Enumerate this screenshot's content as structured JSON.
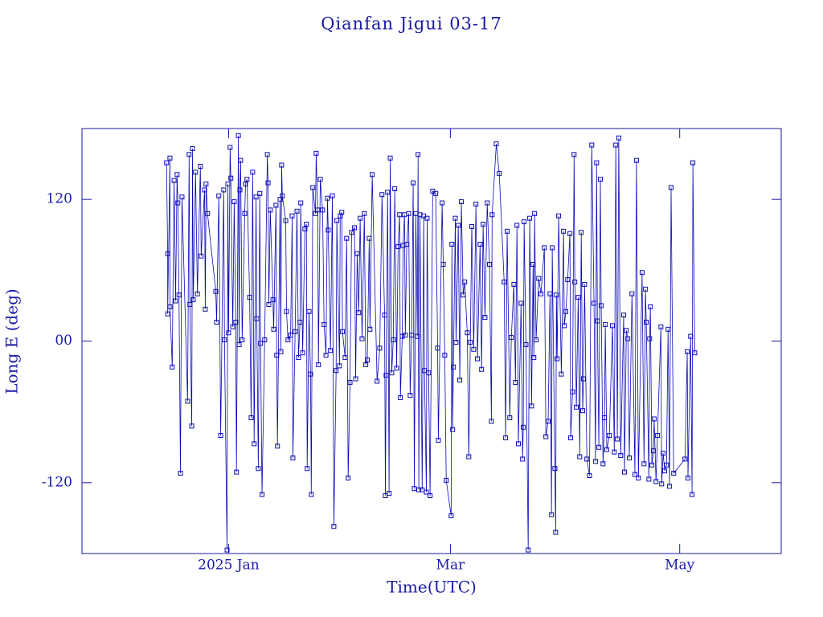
{
  "chart_data": {
    "type": "line",
    "title": "Qianfan Jigui 03-17",
    "x_label": "Time(UTC)",
    "y_label": "Long E (deg)",
    "color": "#0a0ab4",
    "marker": "square",
    "xlim": [
      -39,
      147
    ],
    "ylim": [
      -180,
      180
    ],
    "xticks": [
      {
        "value": 0,
        "label": "2025 Jan"
      },
      {
        "value": 59,
        "label": "Mar"
      },
      {
        "value": 120,
        "label": "May"
      }
    ],
    "yticks": [
      -120,
      {
        "value": 0,
        "label": "00"
      },
      120
    ],
    "x": [
      -16.5,
      -16.2,
      -16.2,
      -15.6,
      -15.6,
      -15,
      -14.5,
      -14.1,
      -13.7,
      -13.5,
      -13.2,
      -12.8,
      -12.4,
      -10.9,
      -10.5,
      -10.3,
      -9.8,
      -9.6,
      -9.4,
      -8.8,
      -8.3,
      -7.5,
      -7.3,
      -6.4,
      -6.2,
      -6,
      -5.6,
      -3.4,
      -3.2,
      -2.6,
      -2.1,
      -1.3,
      -1.1,
      -0.4,
      -0.2,
      0,
      0.4,
      0.6,
      1.1,
      1.5,
      1.9,
      2.1,
      2.6,
      2.8,
      3,
      3.2,
      3.6,
      4.3,
      4.5,
      4.9,
      5.6,
      6,
      6.4,
      6.8,
      7.3,
      7.5,
      7.9,
      8.3,
      8.5,
      8.9,
      9.6,
      10.3,
      10.5,
      10.7,
      11.1,
      11.8,
      12,
      12.6,
      12.8,
      13,
      13.7,
      13.9,
      14.1,
      14.3,
      15.2,
      15.4,
      15.8,
      16.5,
      16.9,
      17.1,
      17.7,
      18.2,
      18.6,
      19,
      19.2,
      19.7,
      20.3,
      20.7,
      20.9,
      21.4,
      21.8,
      22,
      22.4,
      23.1,
      23.3,
      23.7,
      23.9,
      24.4,
      25,
      25.4,
      25.9,
      26.3,
      26.5,
      27.1,
      27.6,
      28,
      28.6,
      28.8,
      29.5,
      29.7,
      30.1,
      30.3,
      31,
      31.4,
      31.8,
      32.3,
      32.7,
      33.5,
      33.8,
      34.2,
      34.6,
      35,
      35.5,
      36.1,
      36.5,
      36.9,
      37.4,
      37.6,
      38.2,
      39.5,
      40.2,
      40.8,
      41.5,
      41.7,
      41.9,
      42.3,
      42.7,
      43,
      43.4,
      43.8,
      44.2,
      44.7,
      45.1,
      45.5,
      45.7,
      46.2,
      46.4,
      46.8,
      47,
      47.4,
      47.9,
      48.3,
      48.7,
      49.1,
      49.4,
      49.8,
      50.2,
      50.4,
      50.6,
      50.9,
      51.5,
      51.9,
      52.1,
      52.6,
      52.8,
      53.2,
      53.6,
      54.3,
      55.1,
      55.6,
      55.8,
      56.8,
      57.1,
      57.5,
      57.9,
      59.2,
      59.4,
      59.6,
      59.8,
      60.3,
      60.5,
      61.1,
      61.5,
      61.9,
      62.4,
      62.8,
      63.5,
      63.9,
      64.3,
      64.7,
      65.2,
      65.8,
      66.2,
      66.9,
      67.3,
      67.7,
      68.2,
      68.8,
      69.4,
      69.9,
      70.1,
      71.2,
      72,
      73.3,
      73.7,
      74.1,
      74.8,
      75.2,
      75.9,
      76.3,
      76.7,
      77.1,
      77.8,
      78.2,
      78.4,
      78.6,
      79.1,
      79.7,
      80.1,
      80.6,
      81,
      81.2,
      81.4,
      81.8,
      82.5,
      83.1,
      84,
      84.4,
      85,
      85.5,
      85.9,
      86.1,
      86.8,
      87,
      87.2,
      87.4,
      87.8,
      88.5,
      89.1,
      89.3,
      89.7,
      90.2,
      90.8,
      91,
      91.5,
      91.9,
      92.1,
      92.5,
      93,
      93.4,
      93.8,
      94.2,
      94.4,
      94.7,
      95.3,
      96,
      96.6,
      97.2,
      97.6,
      97.9,
      98.1,
      98.5,
      98.9,
      99.1,
      99.6,
      100,
      100.2,
      100.6,
      101.3,
      102.1,
      102.6,
      103,
      103.4,
      103.8,
      104.3,
      105.1,
      105.3,
      105.8,
      106.2,
      106.6,
      107.3,
      108.1,
      108.5,
      109,
      110,
      110.5,
      110.9,
      111.1,
      111.8,
      112,
      112.2,
      112.6,
      113,
      113.2,
      113.7,
      114.1,
      115,
      115.2,
      115.6,
      116,
      116.5,
      116.9,
      117.3,
      117.7,
      118.4,
      121.4,
      122,
      122.2,
      122.9,
      123.3,
      123.5,
      124
    ],
    "values": [
      151,
      74,
      23,
      155,
      29,
      -22,
      136,
      34,
      141,
      117,
      39,
      -112,
      122,
      -51,
      158,
      31,
      -72,
      163,
      35,
      143,
      40,
      148,
      72,
      128,
      27,
      133,
      108,
      42,
      16,
      123,
      -80,
      128,
      1,
      -177,
      133,
      7,
      164,
      138,
      12,
      118,
      16,
      -111,
      174,
      -3,
      128,
      153,
      1,
      108,
      133,
      137,
      37,
      -65,
      143,
      -87,
      122,
      19,
      -108,
      125,
      -2,
      -130,
      1,
      158,
      134,
      31,
      111,
      35,
      10,
      115,
      -12,
      -89,
      120,
      -9,
      149,
      123,
      102,
      25,
      1,
      5,
      106,
      -99,
      8,
      110,
      -14,
      16,
      117,
      -10,
      95,
      99,
      -108,
      25,
      -28,
      -130,
      130,
      108,
      159,
      111,
      -20,
      137,
      111,
      14,
      -12,
      121,
      94,
      -8,
      123,
      -157,
      -25,
      102,
      -21,
      106,
      109,
      8,
      -14,
      87,
      -116,
      -35,
      92,
      96,
      -32,
      74,
      24,
      104,
      2,
      108,
      -20,
      -16,
      87,
      10,
      141,
      -34,
      -6,
      124,
      22,
      -131,
      -29,
      126,
      -129,
      155,
      -27,
      1,
      129,
      -23,
      80,
      107,
      -48,
      4,
      81,
      107,
      5,
      82,
      108,
      -46,
      5,
      134,
      -125,
      108,
      4,
      158,
      -126,
      107,
      -126,
      106,
      -25,
      -128,
      104,
      -27,
      -131,
      127,
      125,
      -6,
      -84,
      117,
      65,
      -12,
      -118,
      -148,
      82,
      -75,
      -22,
      104,
      -1,
      98,
      -33,
      118,
      39,
      50,
      7,
      -98,
      -1,
      97,
      -7,
      116,
      -15,
      82,
      -24,
      99,
      20,
      117,
      65,
      -68,
      107,
      167,
      142,
      50,
      -82,
      93,
      -65,
      3,
      48,
      -35,
      98,
      -87,
      32,
      -100,
      -73,
      101,
      -3,
      -177,
      104,
      -55,
      65,
      -14,
      108,
      1,
      53,
      40,
      79,
      -81,
      -68,
      40,
      -147,
      79,
      -108,
      -162,
      39,
      -15,
      106,
      -28,
      93,
      13,
      25,
      52,
      91,
      -82,
      -43,
      158,
      50,
      -56,
      37,
      -98,
      92,
      -59,
      -32,
      48,
      -100,
      -114,
      166,
      32,
      -102,
      151,
      17,
      -90,
      137,
      30,
      -104,
      -65,
      14,
      -92,
      -80,
      13,
      -94,
      166,
      -83,
      172,
      -97,
      22,
      -111,
      9,
      2,
      -99,
      40,
      -113,
      153,
      -116,
      58,
      -104,
      44,
      16,
      -117,
      2,
      29,
      -105,
      -93,
      -66,
      -119,
      -80,
      12,
      -121,
      -95,
      -110,
      -105,
      10,
      -123,
      130,
      -112,
      -100,
      -9,
      -116,
      4,
      -130,
      151,
      -10
    ]
  }
}
